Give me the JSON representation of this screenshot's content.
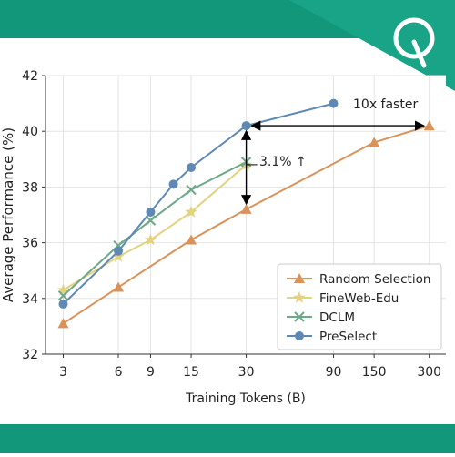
{
  "colors": {
    "band": "#12977a",
    "logo_bg": "#1aa487",
    "random": "#d9935a",
    "fineweb": "#e3d27f",
    "dclm": "#6fa889",
    "preselect": "#5f89b3",
    "annotation": "#000000"
  },
  "logo": {
    "icon": "q-logo-icon"
  },
  "chart_data": {
    "type": "line",
    "title": "",
    "xlabel": "Training Tokens (B)",
    "ylabel": "Average Performance (%)",
    "x_scale": "log",
    "xlim": [
      2.4,
      370
    ],
    "ylim": [
      32,
      42
    ],
    "xticks": [
      3,
      6,
      9,
      15,
      30,
      90,
      150,
      300
    ],
    "xtick_labels": [
      "3",
      "6",
      "9",
      "15",
      "30",
      "90",
      "150",
      "300"
    ],
    "yticks": [
      32,
      34,
      36,
      38,
      40,
      42
    ],
    "ytick_labels": [
      "32",
      "34",
      "36",
      "38",
      "40",
      "42"
    ],
    "grid": true,
    "legend_position": "bottom-right",
    "series": [
      {
        "name": "Random Selection",
        "marker": "triangle",
        "color": "#d9935a",
        "x": [
          3,
          6,
          15,
          30,
          150,
          300
        ],
        "y": [
          33.1,
          34.4,
          36.1,
          37.2,
          39.6,
          40.2
        ]
      },
      {
        "name": "FineWeb-Edu",
        "marker": "star",
        "color": "#e3d27f",
        "x": [
          3,
          6,
          9,
          15,
          30
        ],
        "y": [
          34.3,
          35.5,
          36.1,
          37.1,
          38.8
        ]
      },
      {
        "name": "DCLM",
        "marker": "x",
        "color": "#6fa889",
        "x": [
          3,
          6,
          9,
          15,
          30
        ],
        "y": [
          34.1,
          35.9,
          36.8,
          37.9,
          38.9
        ]
      },
      {
        "name": "PreSelect",
        "marker": "circle",
        "color": "#5f89b3",
        "x": [
          3,
          6,
          9,
          12,
          15,
          30,
          90
        ],
        "y": [
          33.8,
          35.7,
          37.1,
          38.1,
          38.7,
          40.2,
          41.0
        ]
      }
    ],
    "annotations": {
      "speedup_label": "10x faster",
      "gain_label": "3.1% ↑"
    }
  }
}
